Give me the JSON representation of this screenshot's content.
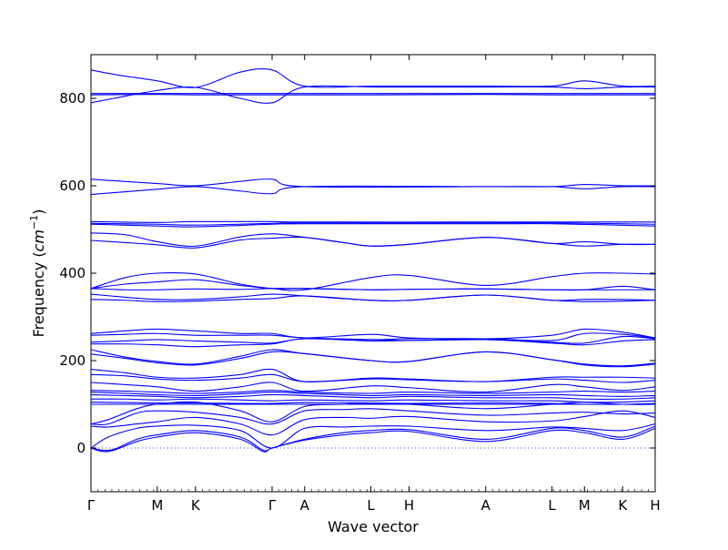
{
  "chart_data": {
    "type": "line",
    "title": "",
    "xlabel": "Wave vector",
    "ylabel": "Frequency (cm⁻¹)",
    "ylabel_base": "Frequency (",
    "ylabel_unit": "cm",
    "ylabel_exp": "−1",
    "ylabel_close": ")",
    "ylim": [
      -100,
      900
    ],
    "yticks": [
      0,
      200,
      400,
      600,
      800
    ],
    "grid": false,
    "line_color": "#0000ff",
    "zero_line_color": "#0000ff",
    "high_symmetry_points": [
      {
        "label": "Γ",
        "x": 0.0
      },
      {
        "label": "M",
        "x": 0.577
      },
      {
        "label": "K",
        "x": 0.91
      },
      {
        "label": "Γ",
        "x": 1.577
      },
      {
        "label": "A",
        "x": 1.86
      },
      {
        "label": "L",
        "x": 2.437
      },
      {
        "label": "H",
        "x": 2.77
      },
      {
        "label": "A",
        "x": 3.437
      },
      {
        "label": "L",
        "x": 4.014
      },
      {
        "label": "M",
        "x": 4.297
      },
      {
        "label": "K",
        "x": 4.63
      },
      {
        "label": "H",
        "x": 4.913
      }
    ],
    "xlim": [
      0,
      4.913
    ],
    "segment_bounds": [
      0,
      1.577,
      1.86,
      3.437,
      4.913
    ],
    "series": [
      {
        "x": [
          0,
          0.2,
          0.577,
          0.91,
          1.3,
          1.577,
          1.86,
          2.5,
          3.437,
          4.014,
          4.297,
          4.63,
          4.913
        ],
        "y": [
          865,
          855,
          840,
          825,
          860,
          865,
          828,
          828,
          828,
          828,
          840,
          828,
          828
        ]
      },
      {
        "x": [
          0,
          0.577,
          0.91,
          1.3,
          1.577,
          1.86,
          2.5,
          3.437,
          4.014,
          4.297,
          4.63,
          4.913
        ],
        "y": [
          811,
          811,
          811,
          811,
          811,
          811,
          811,
          811,
          811,
          811,
          811,
          811
        ]
      },
      {
        "x": [
          0,
          0.577,
          0.91,
          1.3,
          1.577,
          1.86,
          2.5,
          3.437,
          4.014,
          4.297,
          4.63,
          4.913
        ],
        "y": [
          808,
          809,
          808,
          808,
          808,
          808,
          808,
          809,
          808,
          808,
          808,
          808
        ]
      },
      {
        "x": [
          0,
          0.2,
          0.577,
          0.91,
          1.3,
          1.577,
          1.86,
          2.5,
          3.437,
          4.014,
          4.297,
          4.63,
          4.913
        ],
        "y": [
          790,
          800,
          818,
          825,
          800,
          790,
          826,
          826,
          826,
          826,
          822,
          826,
          826
        ]
      },
      {
        "x": [
          0,
          0.577,
          0.91,
          1.3,
          1.577,
          1.86,
          3.437,
          4.014,
          4.297,
          4.63,
          4.913
        ],
        "y": [
          615,
          605,
          600,
          610,
          615,
          598,
          598,
          598,
          603,
          600,
          600
        ]
      },
      {
        "x": [
          0,
          0.577,
          0.91,
          1.3,
          1.577,
          1.86,
          3.437,
          4.014,
          4.297,
          4.63,
          4.913
        ],
        "y": [
          580,
          592,
          598,
          588,
          582,
          598,
          598,
          598,
          593,
          598,
          598
        ]
      },
      {
        "x": [
          0,
          0.577,
          0.91,
          1.577,
          1.86,
          3.437,
          4.014,
          4.913
        ],
        "y": [
          518,
          516,
          518,
          518,
          517,
          517,
          517,
          517
        ]
      },
      {
        "x": [
          0,
          0.577,
          0.91,
          1.577,
          1.86,
          3.437,
          4.014,
          4.913
        ],
        "y": [
          514,
          512,
          510,
          514,
          515,
          515,
          515,
          512
        ]
      },
      {
        "x": [
          0,
          0.577,
          0.91,
          1.577,
          1.86,
          3.437,
          4.014,
          4.913
        ],
        "y": [
          512,
          508,
          506,
          512,
          513,
          513,
          513,
          508
        ]
      },
      {
        "x": [
          0,
          0.3,
          0.577,
          0.91,
          1.3,
          1.577,
          1.86,
          2.2,
          2.437,
          2.77,
          3.437,
          4.014,
          4.297,
          4.63,
          4.913
        ],
        "y": [
          492,
          488,
          472,
          462,
          483,
          490,
          482,
          470,
          462,
          466,
          482,
          468,
          472,
          466,
          466
        ]
      },
      {
        "x": [
          0,
          0.3,
          0.577,
          0.91,
          1.3,
          1.577,
          1.86,
          2.2,
          2.437,
          2.77,
          3.437,
          4.014,
          4.297,
          4.63,
          4.913
        ],
        "y": [
          475,
          470,
          465,
          458,
          476,
          480,
          482,
          470,
          462,
          466,
          482,
          468,
          462,
          466,
          466
        ]
      },
      {
        "x": [
          0,
          0.3,
          0.577,
          0.91,
          1.3,
          1.577,
          1.86,
          2.437,
          2.77,
          3.437,
          4.014,
          4.297,
          4.63,
          4.913
        ],
        "y": [
          365,
          390,
          400,
          398,
          375,
          365,
          362,
          390,
          395,
          372,
          392,
          400,
          400,
          398
        ]
      },
      {
        "x": [
          0,
          0.3,
          0.577,
          0.91,
          1.3,
          1.577,
          1.86,
          2.437,
          2.77,
          3.437,
          4.014,
          4.297,
          4.63,
          4.913
        ],
        "y": [
          365,
          375,
          380,
          385,
          372,
          365,
          365,
          362,
          363,
          364,
          362,
          362,
          370,
          362
        ]
      },
      {
        "x": [
          0,
          0.3,
          0.577,
          0.91,
          1.3,
          1.577,
          1.86,
          2.437,
          2.77,
          3.437,
          4.014,
          4.297,
          4.63,
          4.913
        ],
        "y": [
          365,
          362,
          362,
          364,
          363,
          365,
          365,
          362,
          363,
          364,
          362,
          362,
          362,
          362
        ]
      },
      {
        "x": [
          0,
          0.3,
          0.577,
          0.91,
          1.3,
          1.577,
          1.86,
          2.437,
          2.77,
          3.437,
          4.014,
          4.297,
          4.63,
          4.913
        ],
        "y": [
          352,
          345,
          340,
          340,
          346,
          352,
          348,
          338,
          338,
          350,
          338,
          340,
          340,
          338
        ]
      },
      {
        "x": [
          0,
          0.3,
          0.577,
          0.91,
          1.3,
          1.577,
          1.86,
          2.437,
          2.77,
          3.437,
          4.014,
          4.297,
          4.63,
          4.913
        ],
        "y": [
          340,
          338,
          335,
          336,
          340,
          342,
          348,
          338,
          338,
          350,
          338,
          335,
          336,
          338
        ]
      },
      {
        "x": [
          0,
          0.3,
          0.577,
          0.91,
          1.3,
          1.577,
          1.86,
          2.437,
          2.77,
          3.437,
          4.014,
          4.297,
          4.63,
          4.913
        ],
        "y": [
          262,
          268,
          272,
          268,
          262,
          262,
          252,
          260,
          252,
          250,
          258,
          272,
          265,
          252
        ]
      },
      {
        "x": [
          0,
          0.3,
          0.577,
          0.91,
          1.3,
          1.577,
          1.86,
          2.437,
          2.77,
          3.437,
          4.014,
          4.297,
          4.63,
          4.913
        ],
        "y": [
          258,
          260,
          262,
          258,
          258,
          258,
          252,
          248,
          250,
          250,
          246,
          262,
          260,
          252
        ]
      },
      {
        "x": [
          0,
          0.3,
          0.577,
          0.91,
          1.3,
          1.577,
          1.86,
          2.437,
          2.77,
          3.437,
          4.014,
          4.297,
          4.63,
          4.913
        ],
        "y": [
          242,
          245,
          248,
          245,
          242,
          240,
          250,
          248,
          246,
          248,
          242,
          240,
          255,
          250
        ]
      },
      {
        "x": [
          0,
          0.3,
          0.577,
          0.91,
          1.3,
          1.577,
          1.86,
          2.437,
          2.77,
          3.437,
          4.014,
          4.297,
          4.63,
          4.913
        ],
        "y": [
          238,
          238,
          236,
          232,
          236,
          238,
          250,
          245,
          246,
          248,
          240,
          236,
          245,
          248
        ]
      },
      {
        "x": [
          0,
          0.3,
          0.577,
          0.91,
          1.3,
          1.577,
          1.86,
          2.437,
          2.77,
          3.437,
          4.014,
          4.297,
          4.63,
          4.913
        ],
        "y": [
          225,
          208,
          198,
          192,
          210,
          225,
          216,
          200,
          198,
          220,
          202,
          192,
          188,
          194
        ]
      },
      {
        "x": [
          0,
          0.3,
          0.577,
          0.91,
          1.3,
          1.577,
          1.86,
          2.437,
          2.77,
          3.437,
          4.014,
          4.297,
          4.63,
          4.913
        ],
        "y": [
          215,
          205,
          195,
          190,
          205,
          220,
          216,
          200,
          198,
          220,
          202,
          190,
          186,
          192
        ]
      },
      {
        "x": [
          0,
          0.3,
          0.577,
          0.91,
          1.3,
          1.577,
          1.86,
          2.437,
          2.77,
          3.437,
          4.014,
          4.297,
          4.63,
          4.913
        ],
        "y": [
          180,
          172,
          162,
          160,
          168,
          180,
          152,
          160,
          158,
          152,
          162,
          162,
          162,
          160
        ]
      },
      {
        "x": [
          0,
          0.3,
          0.577,
          0.91,
          1.3,
          1.577,
          1.86,
          2.437,
          2.77,
          3.437,
          4.014,
          4.297,
          4.63,
          4.913
        ],
        "y": [
          168,
          165,
          158,
          155,
          160,
          168,
          152,
          158,
          156,
          152,
          158,
          155,
          150,
          155
        ]
      },
      {
        "x": [
          0,
          0.3,
          0.577,
          0.91,
          1.3,
          1.577,
          1.86,
          2.437,
          2.77,
          3.437,
          4.014,
          4.297,
          4.63,
          4.913
        ],
        "y": [
          150,
          145,
          140,
          130,
          140,
          150,
          130,
          142,
          138,
          128,
          145,
          140,
          132,
          140
        ]
      },
      {
        "x": [
          0,
          0.3,
          0.577,
          0.91,
          1.3,
          1.577,
          1.86,
          2.437,
          2.77,
          3.437,
          4.014,
          4.297,
          4.63,
          4.913
        ],
        "y": [
          132,
          130,
          128,
          125,
          128,
          132,
          128,
          125,
          128,
          125,
          128,
          130,
          128,
          130
        ]
      },
      {
        "x": [
          0,
          0.3,
          0.577,
          0.91,
          1.3,
          1.577,
          1.86,
          2.437,
          2.77,
          3.437,
          4.014,
          4.297,
          4.63,
          4.913
        ],
        "y": [
          128,
          125,
          122,
          120,
          124,
          128,
          125,
          120,
          122,
          120,
          122,
          120,
          118,
          120
        ]
      },
      {
        "x": [
          0,
          0.3,
          0.577,
          0.91,
          1.3,
          1.577,
          1.86,
          2.437,
          2.77,
          3.437,
          4.014,
          4.297,
          4.63,
          4.913
        ],
        "y": [
          122,
          120,
          118,
          115,
          118,
          122,
          120,
          115,
          118,
          115,
          115,
          112,
          112,
          115
        ]
      },
      {
        "x": [
          0,
          0.3,
          0.577,
          0.91,
          1.3,
          1.577,
          1.86,
          2.437,
          2.77,
          3.437,
          4.014,
          4.297,
          4.63,
          4.913
        ],
        "y": [
          112,
          112,
          110,
          112,
          110,
          108,
          110,
          108,
          110,
          108,
          108,
          105,
          105,
          108
        ]
      },
      {
        "x": [
          0,
          0.3,
          0.577,
          0.91,
          1.3,
          1.577,
          1.86,
          2.437,
          2.77,
          3.437,
          4.014,
          4.297,
          4.63,
          4.913
        ],
        "y": [
          105,
          104,
          103,
          103,
          102,
          102,
          104,
          103,
          102,
          103,
          102,
          100,
          100,
          102
        ]
      },
      {
        "x": [
          0,
          0.3,
          0.577,
          0.91,
          1.3,
          1.577,
          1.86,
          2.437,
          2.77,
          3.437,
          4.014,
          4.297,
          4.63,
          4.913
        ],
        "y": [
          100,
          100,
          100,
          100,
          100,
          100,
          100,
          100,
          100,
          100,
          100,
          100,
          100,
          100
        ]
      },
      {
        "x": [
          0,
          0.15,
          0.4,
          0.577,
          0.91,
          1.3,
          1.577,
          1.86,
          2.2,
          2.437,
          2.77,
          3.437,
          4.014,
          4.297,
          4.63,
          4.913
        ],
        "y": [
          55,
          65,
          90,
          100,
          105,
          85,
          60,
          95,
          100,
          102,
          100,
          90,
          100,
          105,
          100,
          100
        ]
      },
      {
        "x": [
          0,
          0.15,
          0.4,
          0.577,
          0.91,
          1.3,
          1.577,
          1.86,
          2.2,
          2.437,
          2.77,
          3.437,
          4.014,
          4.297,
          4.63,
          4.913
        ],
        "y": [
          55,
          55,
          80,
          85,
          82,
          70,
          55,
          85,
          88,
          90,
          85,
          75,
          80,
          82,
          78,
          80
        ]
      },
      {
        "x": [
          0,
          0.15,
          0.4,
          0.577,
          0.91,
          1.3,
          1.577,
          1.86,
          2.2,
          2.437,
          2.77,
          3.437,
          4.014,
          4.297,
          4.63,
          4.913
        ],
        "y": [
          50,
          48,
          55,
          60,
          70,
          55,
          30,
          65,
          70,
          68,
          72,
          60,
          62,
          72,
          85,
          70
        ]
      },
      {
        "x": [
          0,
          0.15,
          0.4,
          0.577,
          0.91,
          1.3,
          1.577,
          1.86,
          2.2,
          2.437,
          2.77,
          3.437,
          4.014,
          4.297,
          4.63,
          4.913
        ],
        "y": [
          0,
          25,
          45,
          50,
          52,
          40,
          0,
          45,
          48,
          50,
          50,
          40,
          48,
          45,
          40,
          55
        ]
      },
      {
        "x": [
          0,
          0.1,
          0.2,
          0.4,
          0.577,
          0.91,
          1.3,
          1.5,
          1.577,
          1.86,
          2.2,
          2.437,
          2.77,
          3.437,
          4.014,
          4.297,
          4.63,
          4.913
        ],
        "y": [
          0,
          -5,
          -3,
          20,
          30,
          40,
          25,
          -5,
          0,
          20,
          35,
          40,
          42,
          20,
          45,
          40,
          25,
          50
        ]
      },
      {
        "x": [
          0,
          0.1,
          0.2,
          0.4,
          0.577,
          0.91,
          1.3,
          1.5,
          1.577,
          1.86,
          2.2,
          2.437,
          2.77,
          3.437,
          4.014,
          4.297,
          4.63,
          4.913
        ],
        "y": [
          0,
          -8,
          -5,
          15,
          25,
          35,
          20,
          -8,
          0,
          18,
          30,
          35,
          38,
          15,
          40,
          35,
          20,
          45
        ]
      }
    ]
  }
}
